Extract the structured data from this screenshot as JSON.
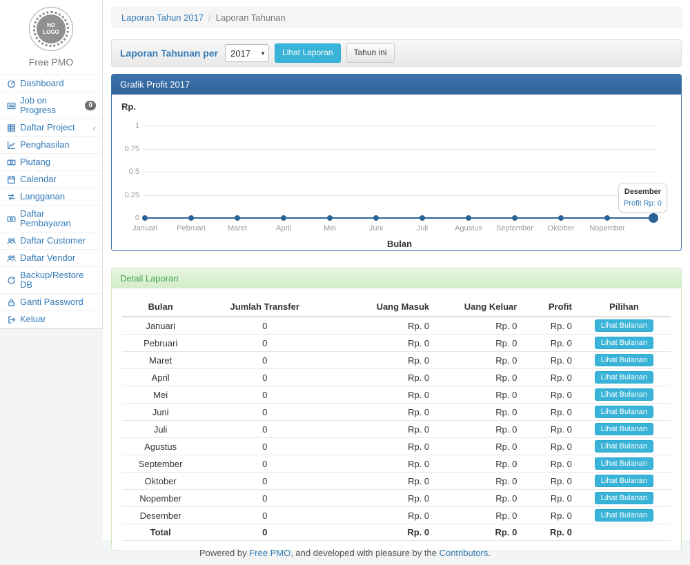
{
  "app": {
    "logo_text": "NO\nLOGO",
    "brand": "Free PMO"
  },
  "colors": {
    "accent_blue": "#337ab7",
    "info_button": "#39b3d7",
    "panel_primary_header": "#35699e",
    "panel_success_header_bg": "#dcf1d4",
    "panel_success_text": "#49a349",
    "chart_line": "#2a6496",
    "badge_bg": "#6e6e6e"
  },
  "sidebar": {
    "items": [
      {
        "label": "Dashboard",
        "icon": "dashboard-icon"
      },
      {
        "label": "Job on Progress",
        "icon": "list-icon",
        "badge": "0"
      },
      {
        "label": "Daftar Project",
        "icon": "table-icon",
        "chevron": "‹"
      },
      {
        "label": "Penghasilan",
        "icon": "line-chart-icon"
      },
      {
        "label": "Piutang",
        "icon": "money-icon"
      },
      {
        "label": "Calendar",
        "icon": "calendar-icon"
      },
      {
        "label": "Langganan",
        "icon": "retweet-icon"
      },
      {
        "label": "Daftar Pembayaran",
        "icon": "money-icon"
      },
      {
        "label": "Daftar Customer",
        "icon": "users-icon"
      },
      {
        "label": "Daftar Vendor",
        "icon": "users-icon"
      },
      {
        "label": "Backup/Restore DB",
        "icon": "refresh-icon"
      },
      {
        "label": "Ganti Password",
        "icon": "lock-icon"
      },
      {
        "label": "Keluar",
        "icon": "sign-out-icon"
      }
    ]
  },
  "breadcrumb": {
    "link": "Laporan Tahun 2017",
    "separator": "/",
    "current": "Laporan Tahunan"
  },
  "toolbar": {
    "label": "Laporan Tahunan per",
    "year": "2017",
    "view_button": "Lihat Laporan",
    "this_year_button": "Tahun ini"
  },
  "chart_panel": {
    "title": "Grafik Profit 2017"
  },
  "chart_data": {
    "type": "line",
    "title": "Grafik Profit 2017",
    "x": [
      "Januari",
      "Pebruari",
      "Maret",
      "April",
      "Mei",
      "Juni",
      "Juli",
      "Agustus",
      "September",
      "Oktober",
      "Nopember",
      "Desember"
    ],
    "series": [
      {
        "name": "Profit",
        "values": [
          0,
          0,
          0,
          0,
          0,
          0,
          0,
          0,
          0,
          0,
          0,
          0
        ]
      }
    ],
    "xlabel": "Bulan",
    "ylabel": "Rp.",
    "ylim": [
      0,
      1
    ],
    "y_ticks": [
      1,
      0.75,
      0.5,
      0.25,
      0
    ],
    "grid": true,
    "legend": "none",
    "hidden_x_labels": [
      "Desember"
    ],
    "tooltip": {
      "title": "Desember",
      "value": "Profit Rp: 0"
    }
  },
  "detail_panel": {
    "title": "Detail Laporan",
    "columns": [
      "Bulan",
      "Jumlah Transfer",
      "Uang Masuk",
      "Uang Keluar",
      "Profit",
      "Pilihan"
    ],
    "action_label": "Lihat Bulanan",
    "rows": [
      {
        "bulan": "Januari",
        "jumlah_transfer": "0",
        "uang_masuk": "Rp. 0",
        "uang_keluar": "Rp. 0",
        "profit": "Rp. 0"
      },
      {
        "bulan": "Pebruari",
        "jumlah_transfer": "0",
        "uang_masuk": "Rp. 0",
        "uang_keluar": "Rp. 0",
        "profit": "Rp. 0"
      },
      {
        "bulan": "Maret",
        "jumlah_transfer": "0",
        "uang_masuk": "Rp. 0",
        "uang_keluar": "Rp. 0",
        "profit": "Rp. 0"
      },
      {
        "bulan": "April",
        "jumlah_transfer": "0",
        "uang_masuk": "Rp. 0",
        "uang_keluar": "Rp. 0",
        "profit": "Rp. 0"
      },
      {
        "bulan": "Mei",
        "jumlah_transfer": "0",
        "uang_masuk": "Rp. 0",
        "uang_keluar": "Rp. 0",
        "profit": "Rp. 0"
      },
      {
        "bulan": "Juni",
        "jumlah_transfer": "0",
        "uang_masuk": "Rp. 0",
        "uang_keluar": "Rp. 0",
        "profit": "Rp. 0"
      },
      {
        "bulan": "Juli",
        "jumlah_transfer": "0",
        "uang_masuk": "Rp. 0",
        "uang_keluar": "Rp. 0",
        "profit": "Rp. 0"
      },
      {
        "bulan": "Agustus",
        "jumlah_transfer": "0",
        "uang_masuk": "Rp. 0",
        "uang_keluar": "Rp. 0",
        "profit": "Rp. 0"
      },
      {
        "bulan": "September",
        "jumlah_transfer": "0",
        "uang_masuk": "Rp. 0",
        "uang_keluar": "Rp. 0",
        "profit": "Rp. 0"
      },
      {
        "bulan": "Oktober",
        "jumlah_transfer": "0",
        "uang_masuk": "Rp. 0",
        "uang_keluar": "Rp. 0",
        "profit": "Rp. 0"
      },
      {
        "bulan": "Nopember",
        "jumlah_transfer": "0",
        "uang_masuk": "Rp. 0",
        "uang_keluar": "Rp. 0",
        "profit": "Rp. 0"
      },
      {
        "bulan": "Desember",
        "jumlah_transfer": "0",
        "uang_masuk": "Rp. 0",
        "uang_keluar": "Rp. 0",
        "profit": "Rp. 0"
      }
    ],
    "total": {
      "bulan": "Total",
      "jumlah_transfer": "0",
      "uang_masuk": "Rp. 0",
      "uang_keluar": "Rp. 0",
      "profit": "Rp. 0"
    }
  },
  "footer": {
    "prefix": "Powered by ",
    "link1": "Free PMO",
    "middle": ", and developed with pleasure by the ",
    "link2": "Contributors",
    "suffix": "."
  }
}
